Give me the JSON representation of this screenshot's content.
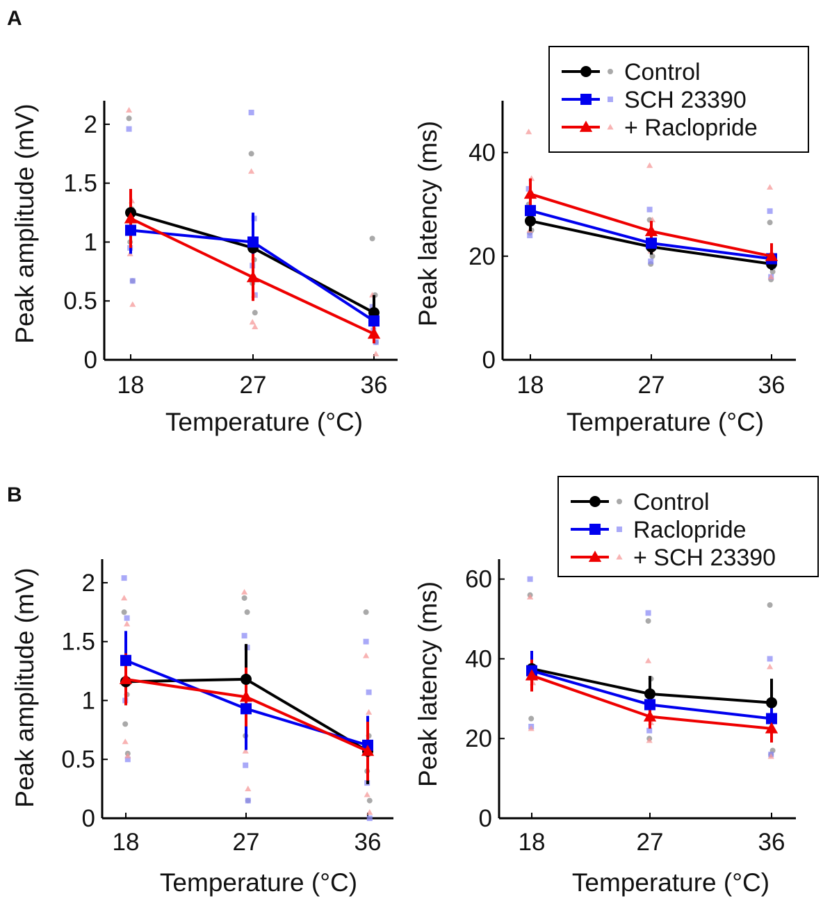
{
  "panel_labels": [
    "A",
    "B"
  ],
  "chart_data": [
    {
      "id": "A-amplitude",
      "type": "line",
      "panel": "A",
      "xlabel": "Temperature (°C)",
      "ylabel": "Peak amplitude (mV)",
      "categories": [
        "18",
        "27",
        "36"
      ],
      "x": [
        18,
        27,
        36
      ],
      "ylim": [
        0,
        2.2
      ],
      "yticks": [
        0,
        0.5,
        1,
        1.5,
        2
      ],
      "ytick_labels": [
        "0",
        "0.5",
        "1",
        "1.5",
        "2"
      ],
      "series": [
        {
          "name": "Control",
          "color": "#000000",
          "marker": "circle",
          "values": [
            1.25,
            0.95,
            0.4
          ],
          "sem": [
            0.2,
            0.2,
            0.15
          ],
          "points": [
            [
              2.05,
              1.28,
              1.0,
              0.67
            ],
            [
              1.75,
              0.85,
              0.65,
              0.4
            ],
            [
              1.03,
              0.55,
              0.3,
              0.15
            ]
          ]
        },
        {
          "name": "SCH 23390",
          "color": "#0000ee",
          "marker": "square",
          "values": [
            1.1,
            1.0,
            0.33
          ],
          "sem": [
            0.2,
            0.25,
            0.08
          ],
          "points": [
            [
              1.96,
              1.25,
              0.95,
              0.67
            ],
            [
              2.1,
              1.2,
              0.8,
              0.55
            ],
            [
              0.45,
              0.35,
              0.25,
              0.15
            ]
          ]
        },
        {
          "name": "+ Raclopride",
          "color": "#ee0000",
          "marker": "triangle",
          "values": [
            1.2,
            0.7,
            0.22
          ],
          "sem": [
            0.25,
            0.2,
            0.08
          ],
          "points": [
            [
              2.12,
              1.35,
              0.9,
              0.47
            ],
            [
              1.6,
              0.55,
              0.32,
              0.28
            ],
            [
              0.55,
              0.35,
              0.2,
              0.05
            ]
          ]
        }
      ]
    },
    {
      "id": "A-latency",
      "type": "line",
      "panel": "A",
      "xlabel": "Temperature (°C)",
      "ylabel": "Peak latency (ms)",
      "categories": [
        "18",
        "27",
        "36"
      ],
      "x": [
        18,
        27,
        36
      ],
      "ylim": [
        0,
        50
      ],
      "yticks": [
        0,
        20,
        40
      ],
      "ytick_labels": [
        "0",
        "20",
        "40"
      ],
      "legend": {
        "position": "top-right",
        "entries": [
          "Control",
          "SCH 23390",
          "+ Raclopride"
        ]
      },
      "series": [
        {
          "name": "Control",
          "color": "#000000",
          "marker": "circle",
          "values": [
            26.8,
            21.8,
            18.5
          ],
          "sem": [
            2,
            1.5,
            1.2
          ],
          "points": [
            [
              30,
              25,
              24.5
            ],
            [
              27,
              20,
              18.5
            ],
            [
              26.5,
              17,
              15.5
            ]
          ]
        },
        {
          "name": "SCH 23390",
          "color": "#0000ee",
          "marker": "square",
          "values": [
            28.8,
            22.5,
            19.5
          ],
          "sem": [
            2,
            1.5,
            1.2
          ],
          "points": [
            [
              33,
              28,
              24
            ],
            [
              29,
              22,
              19
            ],
            [
              28.7,
              18,
              16
            ]
          ]
        },
        {
          "name": "+ Raclopride",
          "color": "#ee0000",
          "marker": "triangle",
          "values": [
            32,
            24.8,
            20
          ],
          "sem": [
            3,
            2,
            2.5
          ],
          "points": [
            [
              44,
              35,
              25
            ],
            [
              37.5,
              27,
              21
            ],
            [
              33.3,
              20,
              16
            ]
          ]
        }
      ]
    },
    {
      "id": "B-amplitude",
      "type": "line",
      "panel": "B",
      "xlabel": "Temperature (°C)",
      "ylabel": "Peak amplitude (mV)",
      "categories": [
        "18",
        "27",
        "36"
      ],
      "x": [
        18,
        27,
        36
      ],
      "ylim": [
        0,
        2.2
      ],
      "yticks": [
        0,
        0.5,
        1,
        1.5,
        2
      ],
      "ytick_labels": [
        "0",
        "0.5",
        "1",
        "1.5",
        "2"
      ],
      "series": [
        {
          "name": "Control",
          "color": "#000000",
          "marker": "circle",
          "values": [
            1.16,
            1.18,
            0.57
          ],
          "sem": [
            0.2,
            0.3,
            0.28
          ],
          "points": [
            [
              1.75,
              1.05,
              0.8,
              0.55
            ],
            [
              1.87,
              1.75,
              0.7,
              0.15
            ],
            [
              1.75,
              0.7,
              0.4,
              0.15
            ]
          ]
        },
        {
          "name": "Raclopride",
          "color": "#0000ee",
          "marker": "square",
          "values": [
            1.34,
            0.93,
            0.62
          ],
          "sem": [
            0.25,
            0.35,
            0.25
          ],
          "points": [
            [
              2.04,
              1.7,
              1.0,
              0.5
            ],
            [
              1.55,
              1.45,
              0.45,
              0.15
            ],
            [
              1.5,
              1.07,
              0.3,
              0.0
            ]
          ]
        },
        {
          "name": "+ SCH 23390",
          "color": "#ee0000",
          "marker": "triangle",
          "values": [
            1.18,
            1.03,
            0.57
          ],
          "sem": [
            0.22,
            0.25,
            0.25
          ],
          "points": [
            [
              1.87,
              1.65,
              0.65,
              0.53
            ],
            [
              1.92,
              1.2,
              0.57,
              0.25
            ],
            [
              1.38,
              0.9,
              0.2,
              0.05
            ]
          ]
        }
      ]
    },
    {
      "id": "B-latency",
      "type": "line",
      "panel": "B",
      "xlabel": "Temperature (°C)",
      "ylabel": "Peak latency (ms)",
      "categories": [
        "18",
        "27",
        "36"
      ],
      "x": [
        18,
        27,
        36
      ],
      "ylim": [
        0,
        65
      ],
      "yticks": [
        0,
        20,
        40,
        60
      ],
      "ytick_labels": [
        "0",
        "20",
        "40",
        "60"
      ],
      "legend": {
        "position": "top-right",
        "entries": [
          "Control",
          "Raclopride",
          "+ SCH 23390"
        ]
      },
      "series": [
        {
          "name": "Control",
          "color": "#000000",
          "marker": "circle",
          "values": [
            37.5,
            31.2,
            29
          ],
          "sem": [
            4,
            4.5,
            6
          ],
          "points": [
            [
              56,
              37,
              25
            ],
            [
              49.5,
              35,
              20
            ],
            [
              53.5,
              17,
              16
            ]
          ]
        },
        {
          "name": "Raclopride",
          "color": "#0000ee",
          "marker": "square",
          "values": [
            37,
            28.5,
            25
          ],
          "sem": [
            5,
            4,
            4
          ],
          "points": [
            [
              60,
              38,
              23
            ],
            [
              51.5,
              30,
              22
            ],
            [
              40,
              25,
              16
            ]
          ]
        },
        {
          "name": "+ SCH 23390",
          "color": "#ee0000",
          "marker": "triangle",
          "values": [
            35.8,
            25.5,
            22.5
          ],
          "sem": [
            4,
            3,
            3.5
          ],
          "points": [
            [
              55.5,
              34,
              22.5
            ],
            [
              39.5,
              24,
              19.5
            ],
            [
              38,
              22,
              15.5
            ]
          ]
        }
      ]
    }
  ]
}
